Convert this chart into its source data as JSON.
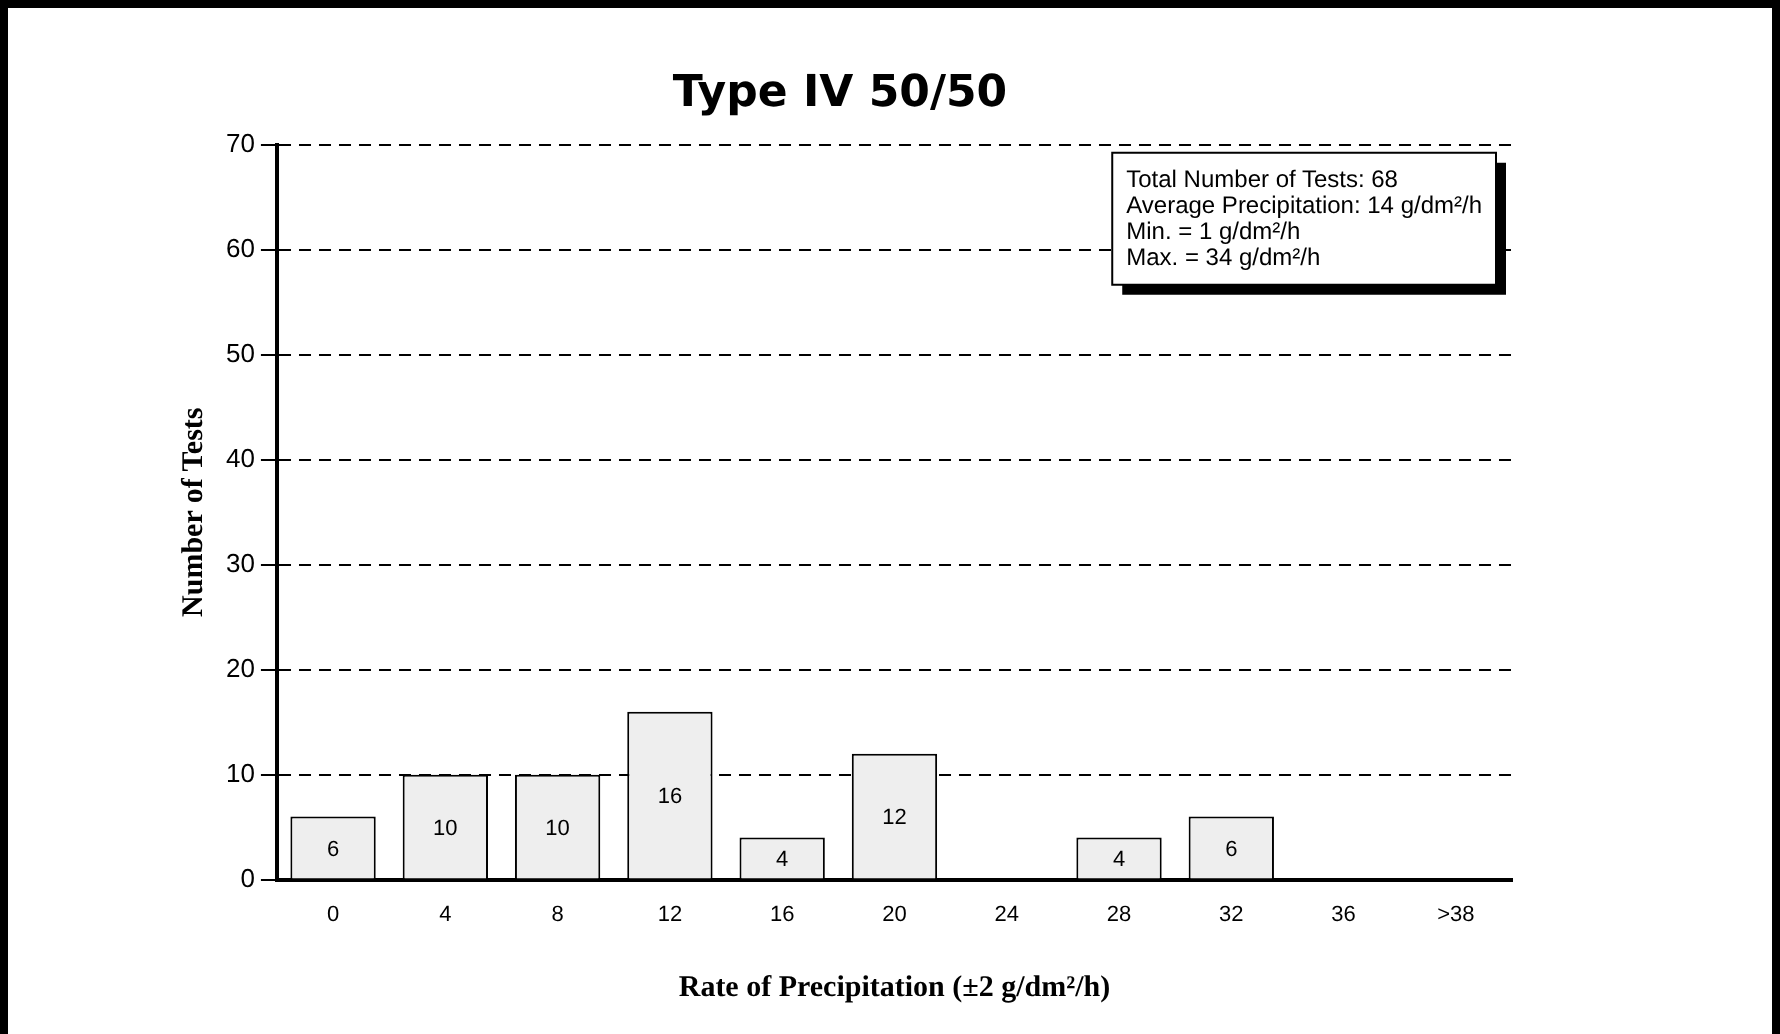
{
  "chart_data": {
    "type": "bar",
    "title": "Type IV 50/50",
    "xlabel": "Rate of Precipitation (±2 g/dm²/h)",
    "ylabel": "Number of Tests",
    "categories": [
      "0",
      "4",
      "8",
      "12",
      "16",
      "20",
      "24",
      "28",
      "32",
      "36",
      ">38"
    ],
    "values": [
      6,
      10,
      10,
      16,
      4,
      12,
      0,
      4,
      6,
      0,
      0
    ],
    "value_labels": [
      "6",
      "10",
      "10",
      "16",
      "4",
      "12",
      null,
      "4",
      "6",
      null,
      null
    ],
    "color": "#eeeeee",
    "ylim": [
      0,
      70
    ],
    "yticks": [
      0,
      10,
      20,
      30,
      40,
      50,
      60,
      70
    ],
    "grid": "y",
    "line_style": "dashed",
    "legend": false,
    "annotations": [
      "Total Number of Tests: 68",
      "Average Precipitation: 14 g/dm²/h",
      "Min. = 1 g/dm²/h",
      "Max. = 34 g/dm²/h"
    ]
  }
}
